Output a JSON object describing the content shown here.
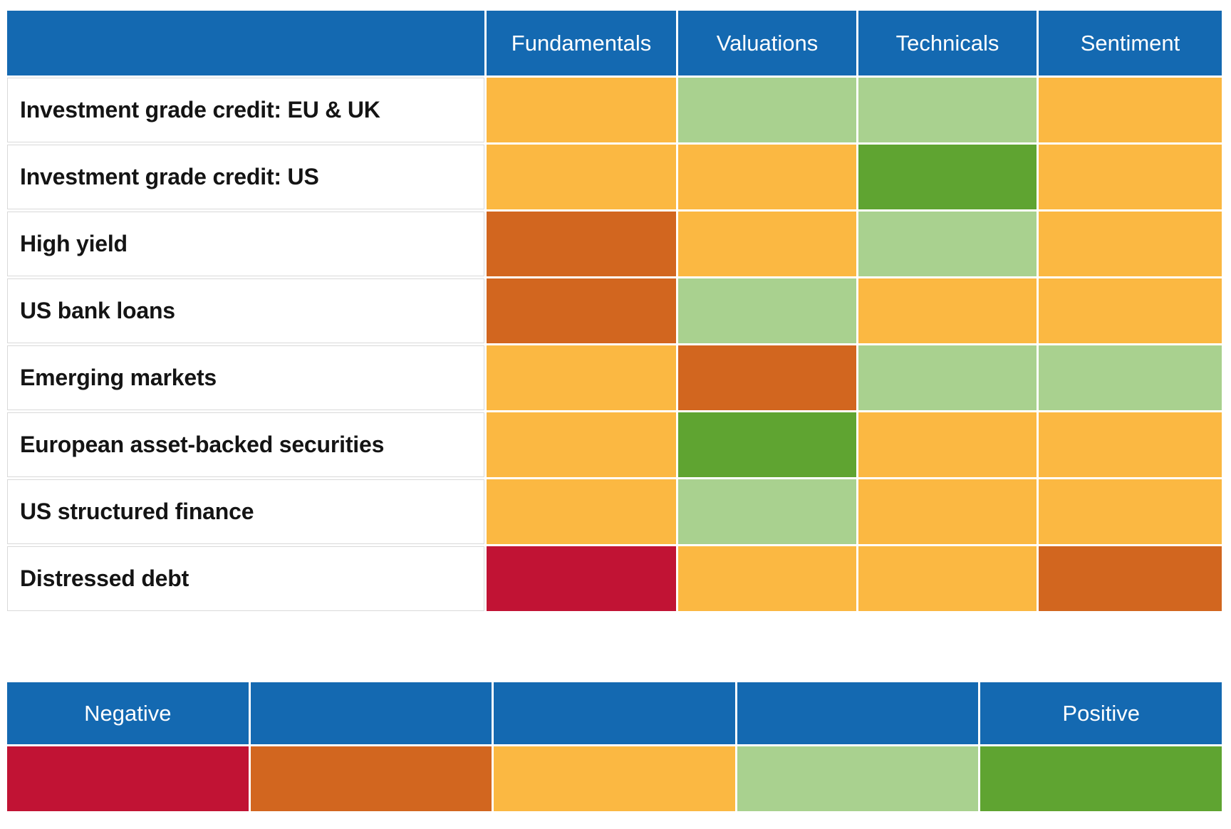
{
  "colors": {
    "header_blue": "#1469b1",
    "header_text": "#ffffff",
    "row_label_text": "#141414",
    "grid_line": "#d9d9d9",
    "negative-2": "#c11334",
    "negative-1": "#d2661f",
    "neutral": "#fbb842",
    "positive-1": "#a9d18f",
    "positive-2": "#5fa431"
  },
  "chart_data": {
    "type": "heatmap",
    "columns": [
      "Fundamentals",
      "Valuations",
      "Technicals",
      "Sentiment"
    ],
    "rows": [
      "Investment grade credit: EU & UK",
      "Investment grade credit: US",
      "High yield",
      "US bank loans",
      "Emerging markets",
      "European asset-backed securities",
      "US structured finance",
      "Distressed debt"
    ],
    "values": [
      [
        "neutral",
        "positive-1",
        "positive-1",
        "neutral"
      ],
      [
        "neutral",
        "neutral",
        "positive-2",
        "neutral"
      ],
      [
        "negative-1",
        "neutral",
        "positive-1",
        "neutral"
      ],
      [
        "negative-1",
        "positive-1",
        "neutral",
        "neutral"
      ],
      [
        "neutral",
        "negative-1",
        "positive-1",
        "positive-1"
      ],
      [
        "neutral",
        "positive-2",
        "neutral",
        "neutral"
      ],
      [
        "neutral",
        "positive-1",
        "neutral",
        "neutral"
      ],
      [
        "negative-2",
        "neutral",
        "neutral",
        "negative-1"
      ]
    ],
    "value_scale": [
      "negative-2",
      "negative-1",
      "neutral",
      "positive-1",
      "positive-2"
    ],
    "legend_labels": [
      "Negative",
      "",
      "",
      "",
      "Positive"
    ],
    "legend_position": "bottom",
    "grid": true
  }
}
